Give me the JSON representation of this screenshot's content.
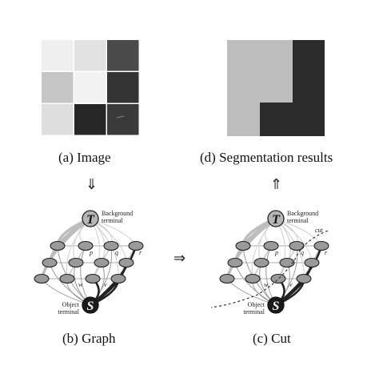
{
  "captions": {
    "image": "(a) Image",
    "segmentation": "(d) Segmentation results",
    "graph": "(b) Graph",
    "cut": "(c) Cut"
  },
  "arrows": {
    "down": "⇓",
    "up": "⇑",
    "right": "⇒"
  },
  "labels": {
    "background_terminal_line1": "Background",
    "background_terminal_line2": "terminal",
    "object_terminal_line1": "Object",
    "object_terminal_line2": "terminal",
    "t_symbol": "T",
    "s_symbol": "S",
    "p": "p",
    "q": "q",
    "r": "r",
    "w": "w",
    "v": "v",
    "cut": "cut"
  },
  "colors": {
    "image_grid": [
      "#efefef",
      "#e2e2e2",
      "#4a4a4a",
      "#c6c6c6",
      "#f2f2f2",
      "#333333",
      "#dedede",
      "#262626",
      "#3a3a3a"
    ],
    "seg_light": "#bdbdbd",
    "seg_dark": "#2b2b2b"
  }
}
